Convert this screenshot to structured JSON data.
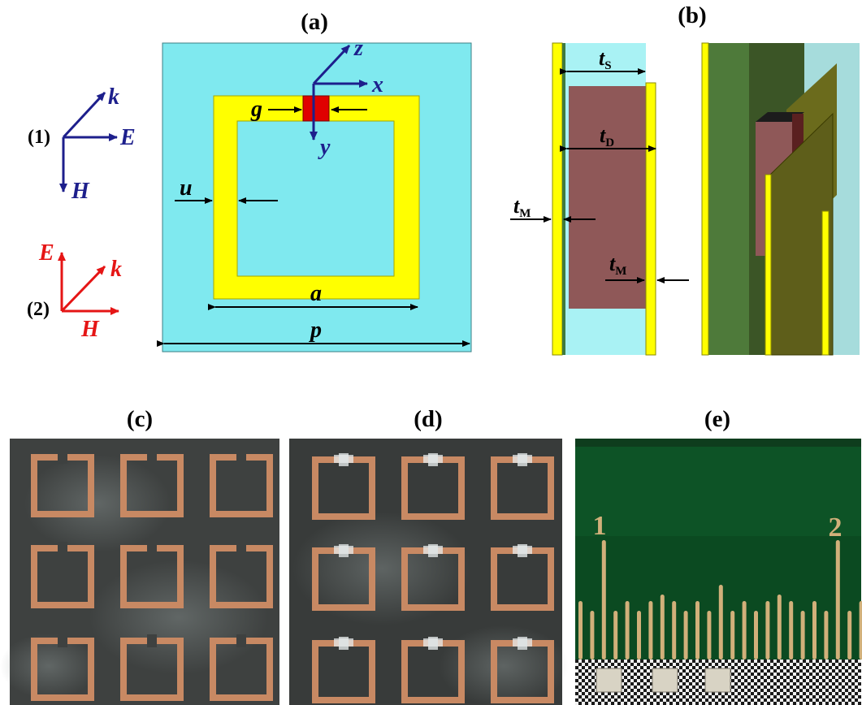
{
  "panels": {
    "a": "(a)",
    "b": "(b)",
    "c": "(c)",
    "d": "(d)",
    "e": "(e)"
  },
  "polarization_1": {
    "number": "(1)",
    "k": "k",
    "E": "E",
    "H": "H"
  },
  "polarization_2": {
    "number": "(2)",
    "E": "E",
    "k": "k",
    "H": "H"
  },
  "panel_a": {
    "axis_z": "z",
    "axis_x": "x",
    "axis_y": "y",
    "dim_g": "g",
    "dim_u": "u",
    "dim_a": "a",
    "dim_p": "p"
  },
  "panel_b": {
    "t_s": "t",
    "t_s_sub": "S",
    "t_d": "t",
    "t_d_sub": "D",
    "t_m_left": "t",
    "t_m_left_sub": "M",
    "t_m_right": "t",
    "t_m_right_sub": "M"
  },
  "ruler": {
    "mark_1": "1",
    "mark_2": "2"
  },
  "colors": {
    "substrate": "#7fe9ef",
    "metal": "#ffff00",
    "gap_element": "#e00000",
    "dielectric": "#8f5858",
    "pol1": "#1d1f8c",
    "pol2": "#e51515",
    "copper": "#c88963",
    "board": "#3e4140",
    "pcb_green": "#0b4a21",
    "gold": "#d1b07a"
  }
}
